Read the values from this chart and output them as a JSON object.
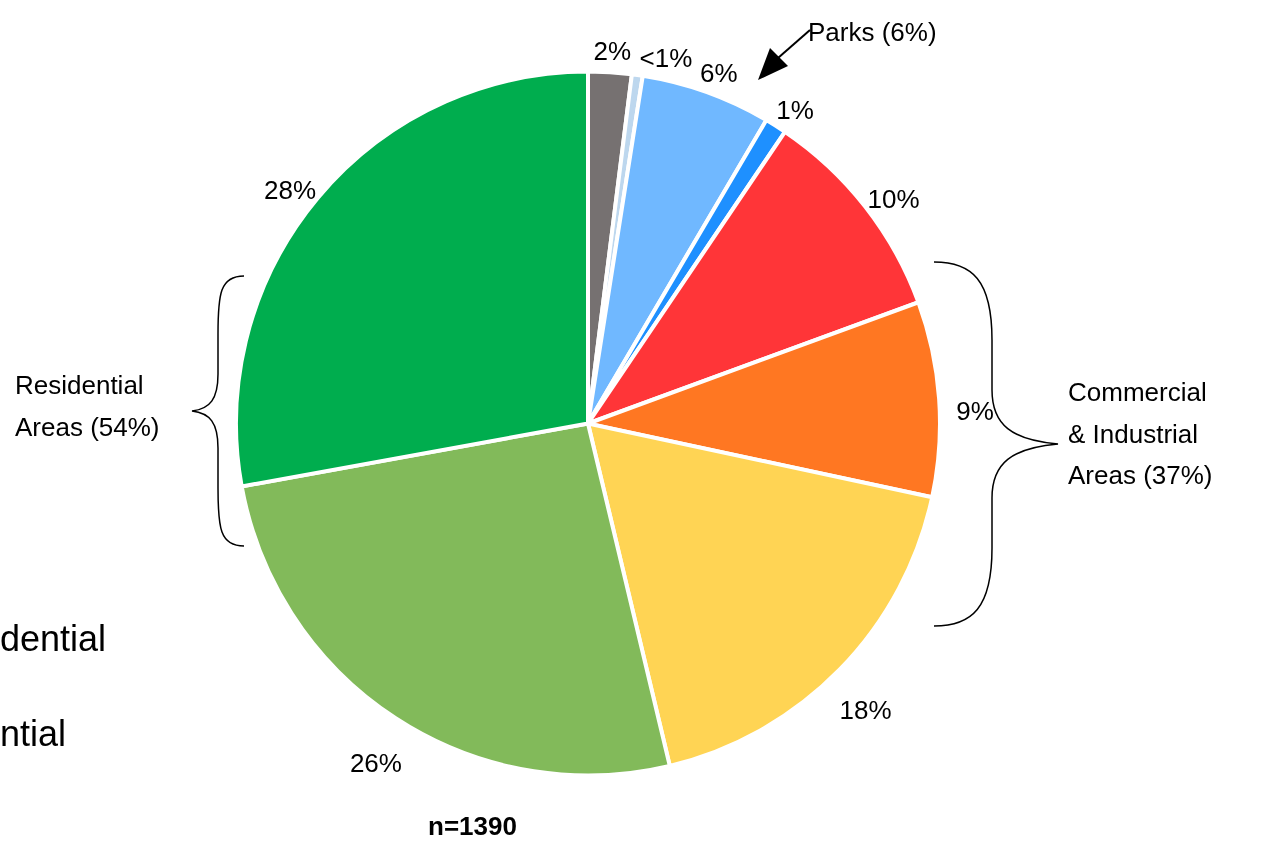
{
  "chart_data": {
    "type": "pie",
    "categories": [
      null,
      null,
      null,
      null,
      null,
      null,
      null,
      null,
      null
    ],
    "values": [
      2,
      0.5,
      6,
      1,
      10,
      9,
      18,
      26,
      28
    ],
    "value_labels": [
      "2%",
      "<1%",
      "6%",
      "1%",
      "10%",
      "9%",
      "18%",
      "26%",
      "28%"
    ],
    "colors": [
      "#767171",
      "#bdd7ee",
      "#70b8ff",
      "#1e90ff",
      "#ff3538",
      "#ff7722",
      "#ffd454",
      "#82ba5a",
      "#00ad4e"
    ],
    "annotations": [
      "Parks (6%)",
      "Commercial & Industrial Areas (37%)",
      "Residential Areas (54%)",
      "n=1390",
      "dential",
      "ntial"
    ]
  }
}
